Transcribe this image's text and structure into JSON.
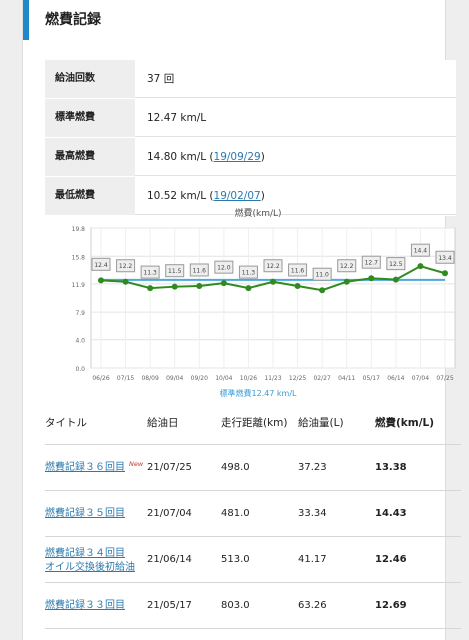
{
  "section": {
    "title": "燃費記録"
  },
  "stats": [
    {
      "key": "給油回数",
      "value": "37 回",
      "link": ""
    },
    {
      "key": "標準燃費",
      "value": "12.47 km/L",
      "link": ""
    },
    {
      "key": "最高燃費",
      "value": "14.80 km/L (",
      "link": "19/09/29",
      "suffix": ")"
    },
    {
      "key": "最低燃費",
      "value": "10.52 km/L (",
      "link": "19/02/07",
      "suffix": ")"
    }
  ],
  "chart_data": {
    "type": "line",
    "title": "燃費(km/L)",
    "x": [
      "06/26",
      "07/15",
      "08/09",
      "09/04",
      "09/20",
      "10/04",
      "10/26",
      "11/23",
      "12/25",
      "02/27",
      "04/11",
      "05/17",
      "06/14",
      "07/04",
      "07/25"
    ],
    "series": [
      {
        "name": "燃費",
        "values": [
          12.4,
          12.2,
          11.3,
          11.5,
          11.6,
          12.0,
          11.3,
          12.2,
          11.6,
          11.0,
          12.2,
          12.7,
          12.5,
          14.4,
          13.4
        ]
      },
      {
        "name": "標準燃費12.47 km/L",
        "values": [
          12.47,
          12.47,
          12.47,
          12.47,
          12.47,
          12.47,
          12.47,
          12.47,
          12.47,
          12.47,
          12.47,
          12.47,
          12.47,
          12.47,
          12.47
        ]
      }
    ],
    "yticks": [
      "19.8",
      "15.8",
      "11.9",
      "7.9",
      "4.0",
      "0.0"
    ],
    "ylim": [
      0,
      19.8
    ],
    "legend": "標準燃費12.47 km/L",
    "colors": {
      "line": "#2f8a1f",
      "baseline": "#4aa9de"
    }
  },
  "history": {
    "headers": {
      "title": "タイトル",
      "date": "給油日",
      "dist": "走行距離(km)",
      "fuel": "給油量(L)",
      "eff": "燃費(km/L)"
    },
    "rows": [
      {
        "title": "燃費記録３６回目",
        "sub": "",
        "badge": "New",
        "date": "21/07/25",
        "dist": "498.0",
        "fuel": "37.23",
        "eff": "13.38"
      },
      {
        "title": "燃費記録３５回目",
        "sub": "",
        "badge": "",
        "date": "21/07/04",
        "dist": "481.0",
        "fuel": "33.34",
        "eff": "14.43"
      },
      {
        "title": "燃費記録３４回目",
        "sub": "オイル交換後初給油",
        "badge": "",
        "date": "21/06/14",
        "dist": "513.0",
        "fuel": "41.17",
        "eff": "12.46"
      },
      {
        "title": "燃費記録３３回目",
        "sub": "",
        "badge": "",
        "date": "21/05/17",
        "dist": "803.0",
        "fuel": "63.26",
        "eff": "12.69"
      }
    ]
  }
}
